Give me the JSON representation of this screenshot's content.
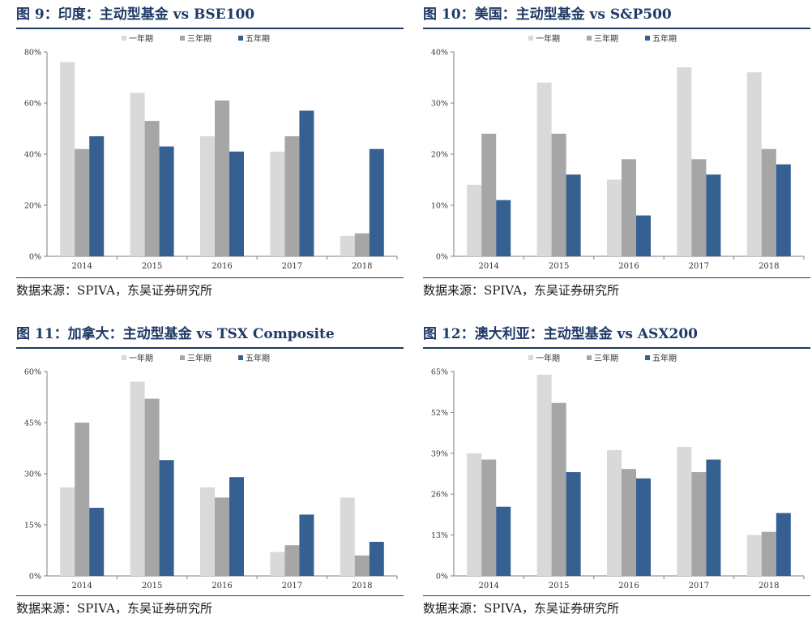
{
  "colors": {
    "one_year": "#d9d9d9",
    "three_year": "#a6a6a6",
    "five_year": "#376092",
    "title": "#1f3a66",
    "axis": "#7f7f7f"
  },
  "panels": [
    {
      "title": "图 9：印度：主动型基金 vs BSE100",
      "source": "数据来源：SPIVA，东吴证券研究所",
      "chart_data": {
        "type": "bar",
        "categories": [
          "2014",
          "2015",
          "2016",
          "2017",
          "2018"
        ],
        "series": [
          {
            "name": "一年期",
            "values": [
              76,
              64,
              47,
              41,
              8
            ]
          },
          {
            "name": "三年期",
            "values": [
              42,
              53,
              61,
              47,
              9
            ]
          },
          {
            "name": "五年期",
            "values": [
              47,
              43,
              41,
              57,
              42
            ]
          }
        ],
        "ylim": [
          0,
          80
        ],
        "yticks": [
          0,
          20,
          40,
          60,
          80
        ],
        "ytick_labels": [
          "0%",
          "20%",
          "40%",
          "60%",
          "80%"
        ],
        "legend": "top-center",
        "grid": false
      }
    },
    {
      "title": "图 10：美国：主动型基金 vs S&P500",
      "source": "数据来源：SPIVA，东吴证券研究所",
      "chart_data": {
        "type": "bar",
        "categories": [
          "2014",
          "2015",
          "2016",
          "2017",
          "2018"
        ],
        "series": [
          {
            "name": "一年期",
            "values": [
              14,
              34,
              15,
              37,
              36
            ]
          },
          {
            "name": "三年期",
            "values": [
              24,
              24,
              19,
              19,
              21
            ]
          },
          {
            "name": "五年期",
            "values": [
              11,
              16,
              8,
              16,
              18
            ]
          }
        ],
        "ylim": [
          0,
          40
        ],
        "yticks": [
          0,
          10,
          20,
          30,
          40
        ],
        "ytick_labels": [
          "0%",
          "10%",
          "20%",
          "30%",
          "40%"
        ],
        "legend": "top-center",
        "grid": false
      }
    },
    {
      "title": "图 11：加拿大：主动型基金 vs TSX Composite",
      "source": "数据来源：SPIVA，东吴证券研究所",
      "chart_data": {
        "type": "bar",
        "categories": [
          "2014",
          "2015",
          "2016",
          "2017",
          "2018"
        ],
        "series": [
          {
            "name": "一年期",
            "values": [
              26,
              57,
              26,
              7,
              23
            ]
          },
          {
            "name": "三年期",
            "values": [
              45,
              52,
              23,
              9,
              6
            ]
          },
          {
            "name": "五年期",
            "values": [
              20,
              34,
              29,
              18,
              10
            ]
          }
        ],
        "ylim": [
          0,
          60
        ],
        "yticks": [
          0,
          15,
          30,
          45,
          60
        ],
        "ytick_labels": [
          "0%",
          "15%",
          "30%",
          "45%",
          "60%"
        ],
        "legend": "top-center",
        "grid": false
      }
    },
    {
      "title": "图 12：澳大利亚：主动型基金 vs ASX200",
      "source": "数据来源：SPIVA，东吴证券研究所",
      "chart_data": {
        "type": "bar",
        "categories": [
          "2014",
          "2015",
          "2016",
          "2017",
          "2018"
        ],
        "series": [
          {
            "name": "一年期",
            "values": [
              39,
              64,
              40,
              41,
              13
            ]
          },
          {
            "name": "三年期",
            "values": [
              37,
              55,
              34,
              33,
              14
            ]
          },
          {
            "name": "五年期",
            "values": [
              22,
              33,
              31,
              37,
              20
            ]
          }
        ],
        "ylim": [
          0,
          65
        ],
        "yticks": [
          0,
          13,
          26,
          39,
          52,
          65
        ],
        "ytick_labels": [
          "0%",
          "13%",
          "26%",
          "39%",
          "52%",
          "65%"
        ],
        "legend": "top-center",
        "grid": false
      }
    }
  ]
}
